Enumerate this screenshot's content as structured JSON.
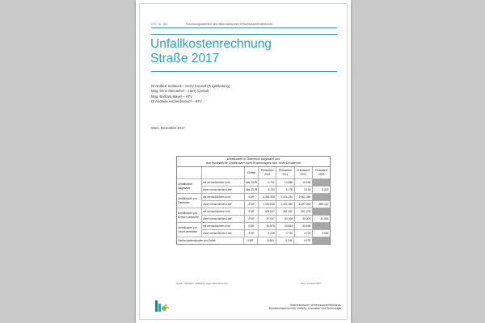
{
  "header": {
    "series_no": "LFB, Nr. 163",
    "series_title": "Forschungsarbeiten des österreichischen Verkehrssicherheitsfonds"
  },
  "title": {
    "line1": "Unfallkostenrechnung",
    "line2": "Straße 2017"
  },
  "authors": [
    "DI Norbert Sedlacek – Herry Consult (Projektleitung)",
    "Mag. Irene Steinacher – Herry Consult",
    "Mag. Barbara Mayer – KFV",
    "DI Andreas Aschenbrenner – KFV"
  ],
  "place_date": "Wien, Dezember 2017",
  "table": {
    "title_line1": "Unfallkosten in Österreich insgesamt und",
    "title_line2": "durchschnittliche Unfallkosten eines Kostenträgers bzw. einer Schadenart",
    "col_unit": "Einheit",
    "col_headers": [
      {
        "l1": "Preisstand",
        "l2": "2016"
      },
      {
        "l1": "Preisstand",
        "l2": "2011"
      },
      {
        "l1": "Preisstand",
        "l2": "2004"
      },
      {
        "l1": "Preisstand",
        "l2": "1993"
      }
    ],
    "groups": [
      {
        "label": "Unfallkosten insgesamt",
        "rows": [
          {
            "sub": "mit menschlichem Leid",
            "unit": "Mio. EUR",
            "vals": [
              "9.701",
              "10.688",
              "10.158",
              ""
            ],
            "gray": [
              false,
              false,
              false,
              true
            ]
          },
          {
            "sub": "ohne menschliches Leid",
            "unit": "Mio. EUR",
            "vals": [
              "5.203",
              "5.278",
              "5.184",
              "3.818"
            ],
            "gray": [
              false,
              false,
              false,
              false
            ]
          }
        ]
      },
      {
        "label": "Unfallkosten pro Getöteten",
        "rows": [
          {
            "sub": "mit menschlichem Leid",
            "unit": "EUR",
            "vals": [
              "3.316.309",
              "3.016.194",
              "2.461.345",
              ""
            ],
            "gray": [
              false,
              false,
              false,
              true
            ]
          },
          {
            "sub": "ohne menschliches Leid",
            "unit": "EUR",
            "vals": [
              "1.330.830",
              "1.401.086",
              "1.287.054",
              "805.222"
            ],
            "gray": [
              false,
              false,
              false,
              false
            ]
          }
        ]
      },
      {
        "label": "Unfallkosten pro Schwer-verletzten",
        "rows": [
          {
            "sub": "mit menschlichem Leid",
            "unit": "EUR",
            "vals": [
              "425.517",
              "381.400",
              "291.275",
              ""
            ],
            "gray": [
              false,
              false,
              false,
              true
            ]
          },
          {
            "sub": "ohne menschliches Leid",
            "unit": "EUR",
            "vals": [
              "87.097",
              "83.168",
              "55.920",
              "42.605"
            ],
            "gray": [
              false,
              false,
              false,
              false
            ]
          }
        ]
      },
      {
        "label": "Unfallkosten pro Leicht-verletzten",
        "rows": [
          {
            "sub": "mit menschlichem Leid",
            "unit": "EUR",
            "vals": [
              "30.575",
              "29.834",
              "30.836",
              ""
            ],
            "gray": [
              false,
              false,
              false,
              true
            ]
          },
          {
            "sub": "ohne menschliches Leid",
            "unit": "EUR",
            "vals": [
              "4.238",
              "3.716",
              "3.730",
              "3.695"
            ],
            "gray": [
              false,
              false,
              false,
              false
            ]
          }
        ]
      }
    ],
    "sachschaden": {
      "label": "Sachschadenskosten pro Unfall",
      "unit": "EUR",
      "vals": [
        "5.481",
        "5.245",
        "4.075",
        ""
      ],
      "gray": [
        false,
        false,
        false,
        true
      ]
    },
    "source": "Quelle: UKR2007, UKR2012, eigene Berechnungen",
    "credit": "Herry Consult / KFV"
  },
  "logo": {
    "text": "kfv"
  },
  "footer": {
    "line1": "Österreichischer Verkehrssicherheitsfonds",
    "line2": "Bundesministerium für Verkehr, Innovation und Technologie"
  },
  "colors": {
    "accent": "#2fa0b8",
    "gray_cell": "#a7a7a7",
    "background": "#c9c9c9"
  }
}
